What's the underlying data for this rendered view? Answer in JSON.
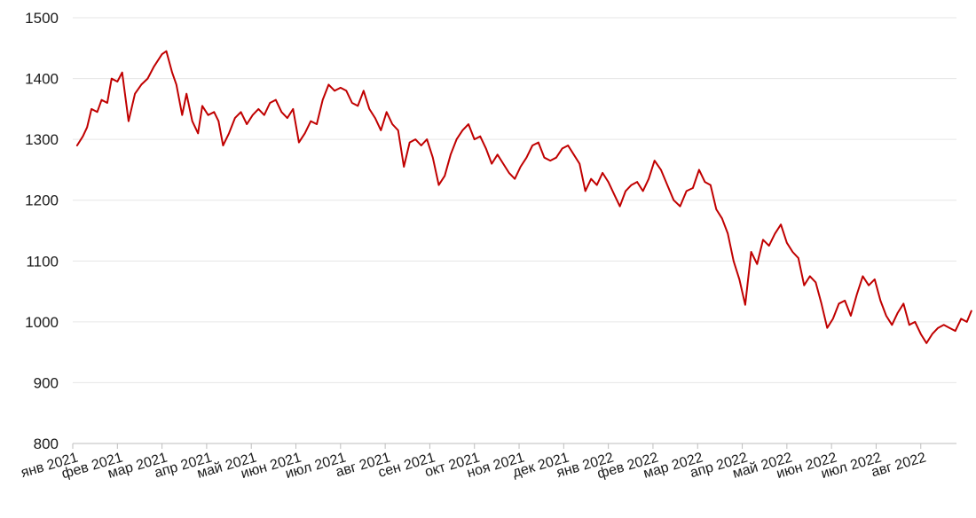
{
  "chart_data": {
    "type": "line",
    "title": "",
    "xlabel": "",
    "ylabel": "",
    "ylim": [
      800,
      1500
    ],
    "y_ticks": [
      800,
      900,
      1000,
      1100,
      1200,
      1300,
      1400,
      1500
    ],
    "x_tick_labels": [
      "янв 2021",
      "фев 2021",
      "мар 2021",
      "апр 2021",
      "май 2021",
      "июн 2021",
      "июл 2021",
      "авг 2021",
      "сен 2021",
      "окт 2021",
      "ноя 2021",
      "дек 2021",
      "янв 2022",
      "фев 2022",
      "мар 2022",
      "апр 2022",
      "май 2022",
      "июн 2022",
      "июл 2022",
      "авг 2022"
    ],
    "grid": "horizontal",
    "series": [
      {
        "color": "#c00000",
        "points": [
          [
            "2021-01-04",
            1290
          ],
          [
            "2021-01-08",
            1305
          ],
          [
            "2021-01-11",
            1320
          ],
          [
            "2021-01-14",
            1350
          ],
          [
            "2021-01-18",
            1345
          ],
          [
            "2021-01-21",
            1365
          ],
          [
            "2021-01-25",
            1360
          ],
          [
            "2021-01-28",
            1400
          ],
          [
            "2021-02-01",
            1395
          ],
          [
            "2021-02-04",
            1410
          ],
          [
            "2021-02-08",
            1330
          ],
          [
            "2021-02-12",
            1375
          ],
          [
            "2021-02-16",
            1390
          ],
          [
            "2021-02-20",
            1400
          ],
          [
            "2021-02-24",
            1420
          ],
          [
            "2021-03-01",
            1440
          ],
          [
            "2021-03-04",
            1445
          ],
          [
            "2021-03-08",
            1410
          ],
          [
            "2021-03-11",
            1390
          ],
          [
            "2021-03-15",
            1340
          ],
          [
            "2021-03-18",
            1375
          ],
          [
            "2021-03-22",
            1330
          ],
          [
            "2021-03-26",
            1310
          ],
          [
            "2021-03-29",
            1355
          ],
          [
            "2021-04-02",
            1340
          ],
          [
            "2021-04-06",
            1345
          ],
          [
            "2021-04-09",
            1330
          ],
          [
            "2021-04-12",
            1290
          ],
          [
            "2021-04-16",
            1310
          ],
          [
            "2021-04-20",
            1335
          ],
          [
            "2021-04-24",
            1345
          ],
          [
            "2021-04-28",
            1325
          ],
          [
            "2021-05-02",
            1340
          ],
          [
            "2021-05-06",
            1350
          ],
          [
            "2021-05-10",
            1340
          ],
          [
            "2021-05-14",
            1360
          ],
          [
            "2021-05-18",
            1365
          ],
          [
            "2021-05-22",
            1345
          ],
          [
            "2021-05-26",
            1335
          ],
          [
            "2021-05-30",
            1350
          ],
          [
            "2021-06-03",
            1295
          ],
          [
            "2021-06-07",
            1310
          ],
          [
            "2021-06-11",
            1330
          ],
          [
            "2021-06-15",
            1325
          ],
          [
            "2021-06-19",
            1365
          ],
          [
            "2021-06-23",
            1390
          ],
          [
            "2021-06-27",
            1380
          ],
          [
            "2021-07-01",
            1385
          ],
          [
            "2021-07-05",
            1380
          ],
          [
            "2021-07-09",
            1360
          ],
          [
            "2021-07-13",
            1355
          ],
          [
            "2021-07-17",
            1380
          ],
          [
            "2021-07-21",
            1350
          ],
          [
            "2021-07-25",
            1335
          ],
          [
            "2021-07-29",
            1315
          ],
          [
            "2021-08-02",
            1345
          ],
          [
            "2021-08-06",
            1325
          ],
          [
            "2021-08-10",
            1315
          ],
          [
            "2021-08-14",
            1255
          ],
          [
            "2021-08-18",
            1295
          ],
          [
            "2021-08-22",
            1300
          ],
          [
            "2021-08-26",
            1290
          ],
          [
            "2021-08-30",
            1300
          ],
          [
            "2021-09-03",
            1270
          ],
          [
            "2021-09-07",
            1225
          ],
          [
            "2021-09-11",
            1240
          ],
          [
            "2021-09-15",
            1275
          ],
          [
            "2021-09-19",
            1300
          ],
          [
            "2021-09-23",
            1315
          ],
          [
            "2021-09-27",
            1325
          ],
          [
            "2021-10-01",
            1300
          ],
          [
            "2021-10-05",
            1305
          ],
          [
            "2021-10-09",
            1285
          ],
          [
            "2021-10-13",
            1260
          ],
          [
            "2021-10-17",
            1275
          ],
          [
            "2021-10-21",
            1260
          ],
          [
            "2021-10-25",
            1245
          ],
          [
            "2021-10-29",
            1235
          ],
          [
            "2021-11-02",
            1255
          ],
          [
            "2021-11-06",
            1270
          ],
          [
            "2021-11-10",
            1290
          ],
          [
            "2021-11-14",
            1295
          ],
          [
            "2021-11-18",
            1270
          ],
          [
            "2021-11-22",
            1265
          ],
          [
            "2021-11-26",
            1270
          ],
          [
            "2021-11-30",
            1285
          ],
          [
            "2021-12-04",
            1290
          ],
          [
            "2021-12-08",
            1275
          ],
          [
            "2021-12-12",
            1260
          ],
          [
            "2021-12-16",
            1215
          ],
          [
            "2021-12-20",
            1235
          ],
          [
            "2021-12-24",
            1225
          ],
          [
            "2021-12-28",
            1245
          ],
          [
            "2022-01-01",
            1230
          ],
          [
            "2022-01-05",
            1210
          ],
          [
            "2022-01-09",
            1190
          ],
          [
            "2022-01-13",
            1215
          ],
          [
            "2022-01-17",
            1225
          ],
          [
            "2022-01-21",
            1230
          ],
          [
            "2022-01-25",
            1215
          ],
          [
            "2022-01-29",
            1235
          ],
          [
            "2022-02-02",
            1265
          ],
          [
            "2022-02-06",
            1250
          ],
          [
            "2022-02-10",
            1225
          ],
          [
            "2022-02-14",
            1200
          ],
          [
            "2022-02-18",
            1190
          ],
          [
            "2022-02-22",
            1215
          ],
          [
            "2022-02-26",
            1220
          ],
          [
            "2022-03-02",
            1250
          ],
          [
            "2022-03-06",
            1230
          ],
          [
            "2022-03-10",
            1225
          ],
          [
            "2022-03-14",
            1185
          ],
          [
            "2022-03-18",
            1170
          ],
          [
            "2022-03-22",
            1145
          ],
          [
            "2022-03-26",
            1100
          ],
          [
            "2022-03-30",
            1070
          ],
          [
            "2022-04-03",
            1028
          ],
          [
            "2022-04-07",
            1115
          ],
          [
            "2022-04-11",
            1095
          ],
          [
            "2022-04-15",
            1135
          ],
          [
            "2022-04-19",
            1125
          ],
          [
            "2022-04-23",
            1145
          ],
          [
            "2022-04-27",
            1160
          ],
          [
            "2022-05-01",
            1130
          ],
          [
            "2022-05-05",
            1115
          ],
          [
            "2022-05-09",
            1105
          ],
          [
            "2022-05-13",
            1060
          ],
          [
            "2022-05-17",
            1075
          ],
          [
            "2022-05-21",
            1065
          ],
          [
            "2022-05-25",
            1030
          ],
          [
            "2022-05-29",
            990
          ],
          [
            "2022-06-02",
            1005
          ],
          [
            "2022-06-06",
            1030
          ],
          [
            "2022-06-10",
            1035
          ],
          [
            "2022-06-14",
            1010
          ],
          [
            "2022-06-18",
            1045
          ],
          [
            "2022-06-22",
            1075
          ],
          [
            "2022-06-26",
            1060
          ],
          [
            "2022-06-30",
            1070
          ],
          [
            "2022-07-04",
            1035
          ],
          [
            "2022-07-08",
            1010
          ],
          [
            "2022-07-12",
            995
          ],
          [
            "2022-07-16",
            1015
          ],
          [
            "2022-07-20",
            1030
          ],
          [
            "2022-07-24",
            995
          ],
          [
            "2022-07-28",
            1000
          ],
          [
            "2022-08-01",
            980
          ],
          [
            "2022-08-05",
            965
          ],
          [
            "2022-08-09",
            980
          ],
          [
            "2022-08-13",
            990
          ],
          [
            "2022-08-17",
            995
          ],
          [
            "2022-08-21",
            990
          ],
          [
            "2022-08-25",
            985
          ],
          [
            "2022-08-29",
            1005
          ],
          [
            "2022-09-02",
            1000
          ],
          [
            "2022-09-05",
            1018
          ]
        ]
      }
    ]
  }
}
